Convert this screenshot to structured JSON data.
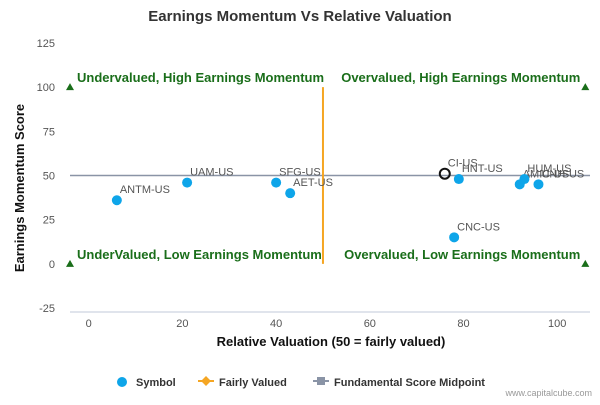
{
  "chart_data": {
    "type": "scatter",
    "title": "Earnings Momentum Vs Relative Valuation",
    "xlabel": "Relative Valuation (50 = fairly valued)",
    "ylabel": "Earnings Momentum Score",
    "xlim": [
      -4,
      107
    ],
    "ylim": [
      -25,
      125
    ],
    "x_ticks": [
      "0",
      "20",
      "40",
      "60",
      "80",
      "100"
    ],
    "y_ticks": [
      "-25",
      "0",
      "25",
      "50",
      "75",
      "100",
      "125"
    ],
    "grid": false,
    "legend_position": "bottom",
    "legend": [
      "Symbol",
      "Fairly Valued",
      "Fundamental Score Midpoint"
    ],
    "colors": {
      "symbol": "#0ea5e9",
      "fairly_valued": "#f5a623",
      "midpoint": "#8a94a6",
      "quadrant": "#1a6e1a",
      "selected_stroke": "#111111"
    },
    "fairly_valued_x": 50,
    "midpoint_y": 50,
    "points": [
      {
        "label": "ANTM-US",
        "x": 6,
        "y": 36
      },
      {
        "label": "UAM-US",
        "x": 21,
        "y": 46
      },
      {
        "label": "SFG-US",
        "x": 40,
        "y": 46
      },
      {
        "label": "AET-US",
        "x": 43,
        "y": 40
      },
      {
        "label": "CI-US",
        "x": 76,
        "y": 51,
        "selected": true
      },
      {
        "label": "HNT-US",
        "x": 79,
        "y": 48
      },
      {
        "label": "CNC-US",
        "x": 78,
        "y": 15
      },
      {
        "label": "AMIC-US",
        "x": 92,
        "y": 45
      },
      {
        "label": "HUM-US",
        "x": 93,
        "y": 48
      },
      {
        "label": "UNH-US",
        "x": 96,
        "y": 45
      }
    ],
    "quadrants": [
      {
        "label": "Undervalued, High Earnings Momentum",
        "x": -4,
        "y": 100,
        "marker": "left"
      },
      {
        "label": "Overvalued, High Earnings Momentum",
        "x": 106,
        "y": 100,
        "marker": "right"
      },
      {
        "label": "UnderValued, Low Earnings Momentum",
        "x": -4,
        "y": 0,
        "marker": "left"
      },
      {
        "label": "Overvalued, Low Earnings Momentum",
        "x": 106,
        "y": 0,
        "marker": "right"
      }
    ]
  },
  "watermark": "www.capitalcube.com"
}
